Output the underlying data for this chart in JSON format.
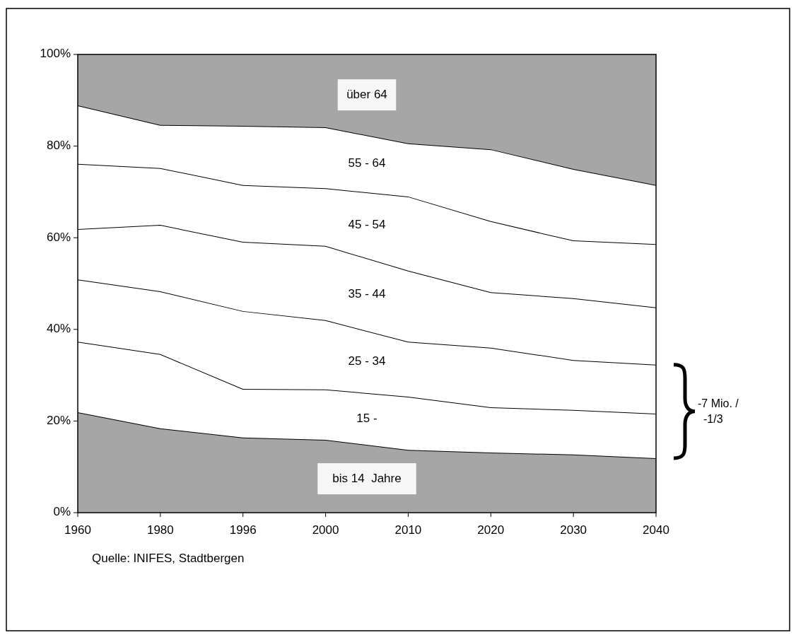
{
  "chart_data": {
    "type": "area",
    "stacked": true,
    "categories": [
      "1960",
      "1980",
      "1996",
      "2000",
      "2010",
      "2020",
      "2030",
      "2040"
    ],
    "series": [
      {
        "name": "bis 14  Jahre",
        "color": "#a6a6a6",
        "values": [
          21.9,
          18.4,
          16.4,
          15.9,
          13.7,
          13.1,
          12.7,
          11.9
        ]
      },
      {
        "name": "15 -",
        "color": "#ffffff",
        "values": [
          15.4,
          16.2,
          10.6,
          11.0,
          11.6,
          9.9,
          9.7,
          9.7
        ]
      },
      {
        "name": "25 - 34",
        "color": "#ffffff",
        "values": [
          13.6,
          13.7,
          17.0,
          15.1,
          12.0,
          13.0,
          10.9,
          10.7
        ]
      },
      {
        "name": "35 - 44",
        "color": "#ffffff",
        "values": [
          11.0,
          14.5,
          15.1,
          16.2,
          15.5,
          12.1,
          13.5,
          12.5
        ]
      },
      {
        "name": "45 - 54",
        "color": "#ffffff",
        "values": [
          14.2,
          12.4,
          12.4,
          12.6,
          16.2,
          15.5,
          12.6,
          13.8
        ]
      },
      {
        "name": "55 - 64",
        "color": "#ffffff",
        "values": [
          12.8,
          9.4,
          12.9,
          13.3,
          11.6,
          15.7,
          15.6,
          12.9
        ]
      },
      {
        "name": "über 64",
        "color": "#a6a6a6",
        "values": [
          11.1,
          15.4,
          15.6,
          15.9,
          19.4,
          20.7,
          25.0,
          28.5
        ]
      }
    ],
    "ylim": [
      0,
      100
    ],
    "yticks": [
      {
        "value": 0,
        "label": "0%"
      },
      {
        "value": 20,
        "label": "20%"
      },
      {
        "value": 40,
        "label": "40%"
      },
      {
        "value": 60,
        "label": "60%"
      },
      {
        "value": 80,
        "label": "80%"
      },
      {
        "value": 100,
        "label": "100%"
      }
    ],
    "annotations": [
      "-7 Mio. / -1/3",
      "Quelle: INIFES, Stadtbergen"
    ]
  }
}
